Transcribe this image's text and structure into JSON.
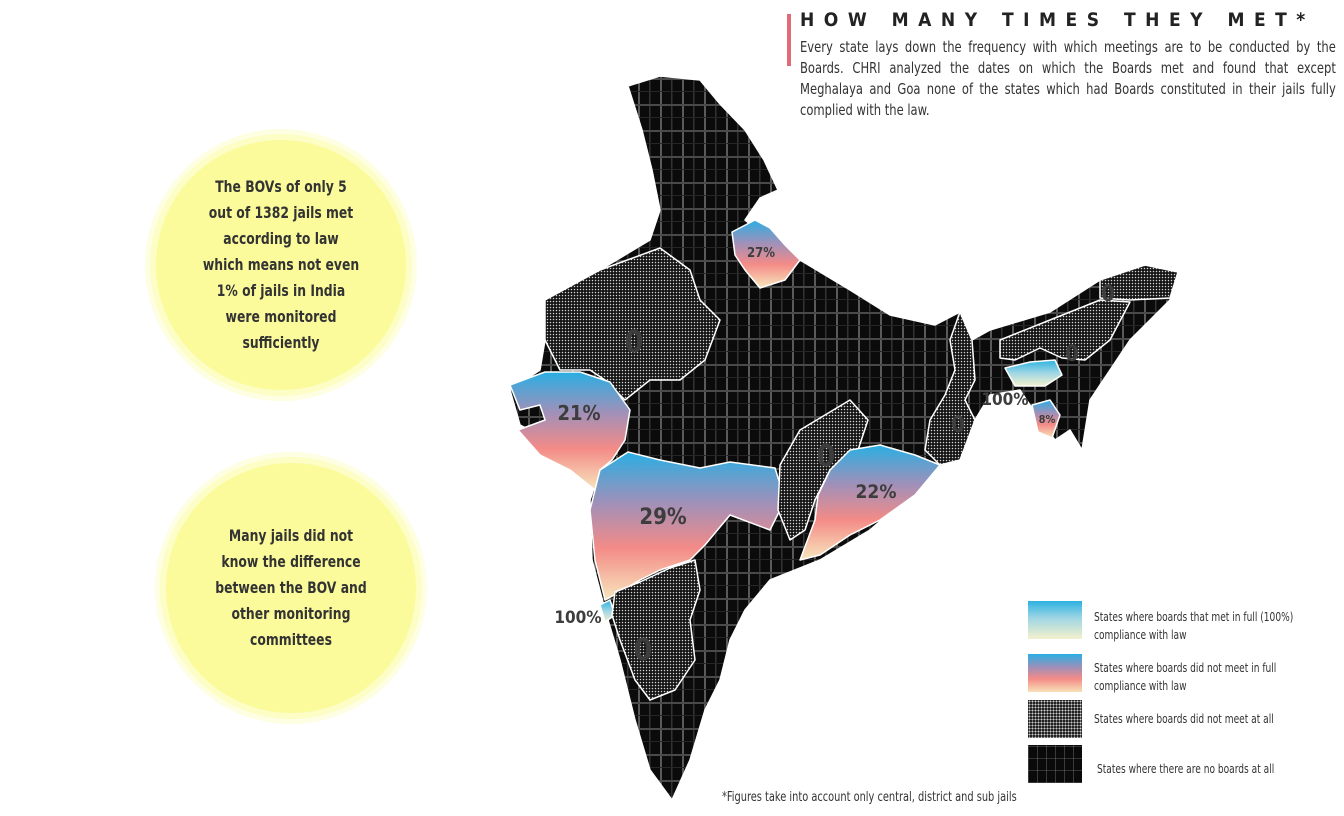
{
  "title": "HOW MANY TIMES THEY MET*",
  "subtitle": "Every state lays down the frequency with which meetings are to be conducted by the Boards. CHRI analyzed the dates on which the Boards met and found that except Meghalaya and Goa none of the states which had Boards constituted in their jails fully complied with the law.",
  "callouts": [
    "The BOVs of only 5\nout of 1382 jails met\naccording to law\nwhich means not even\n1% of jails in India\nwere monitored\nsufficiently",
    "Many jails did not\nknow the difference\nbetween the BOV and\nother monitoring\ncommittees"
  ],
  "map_labels": {
    "uttarakhand": "27%",
    "rajasthan": "0",
    "gujarat": "21%",
    "maharashtra": "29%",
    "odisha": "22%",
    "chhattisgarh": "0",
    "west_bengal": "0",
    "arunachal": "0",
    "assam": "0",
    "meghalaya": "100%",
    "tripura": "8%",
    "goa": "100%",
    "karnataka": "0"
  },
  "legend": {
    "full": "States where boards  that met in full (100%) compliance with law",
    "partial": "States where boards did not meet in full compliance with law",
    "none": "States where boards did not meet at all",
    "no_boards": "States where there are no boards at all"
  },
  "colors": {
    "full_top": "#2cb2e1",
    "partial_mid": "#f48b87",
    "no_boards": "#0a0a0a",
    "bubble": "#fbfb9b",
    "title_bar": "#e06b77"
  },
  "footnote": "*Figures take into account only central, district and sub jails"
}
